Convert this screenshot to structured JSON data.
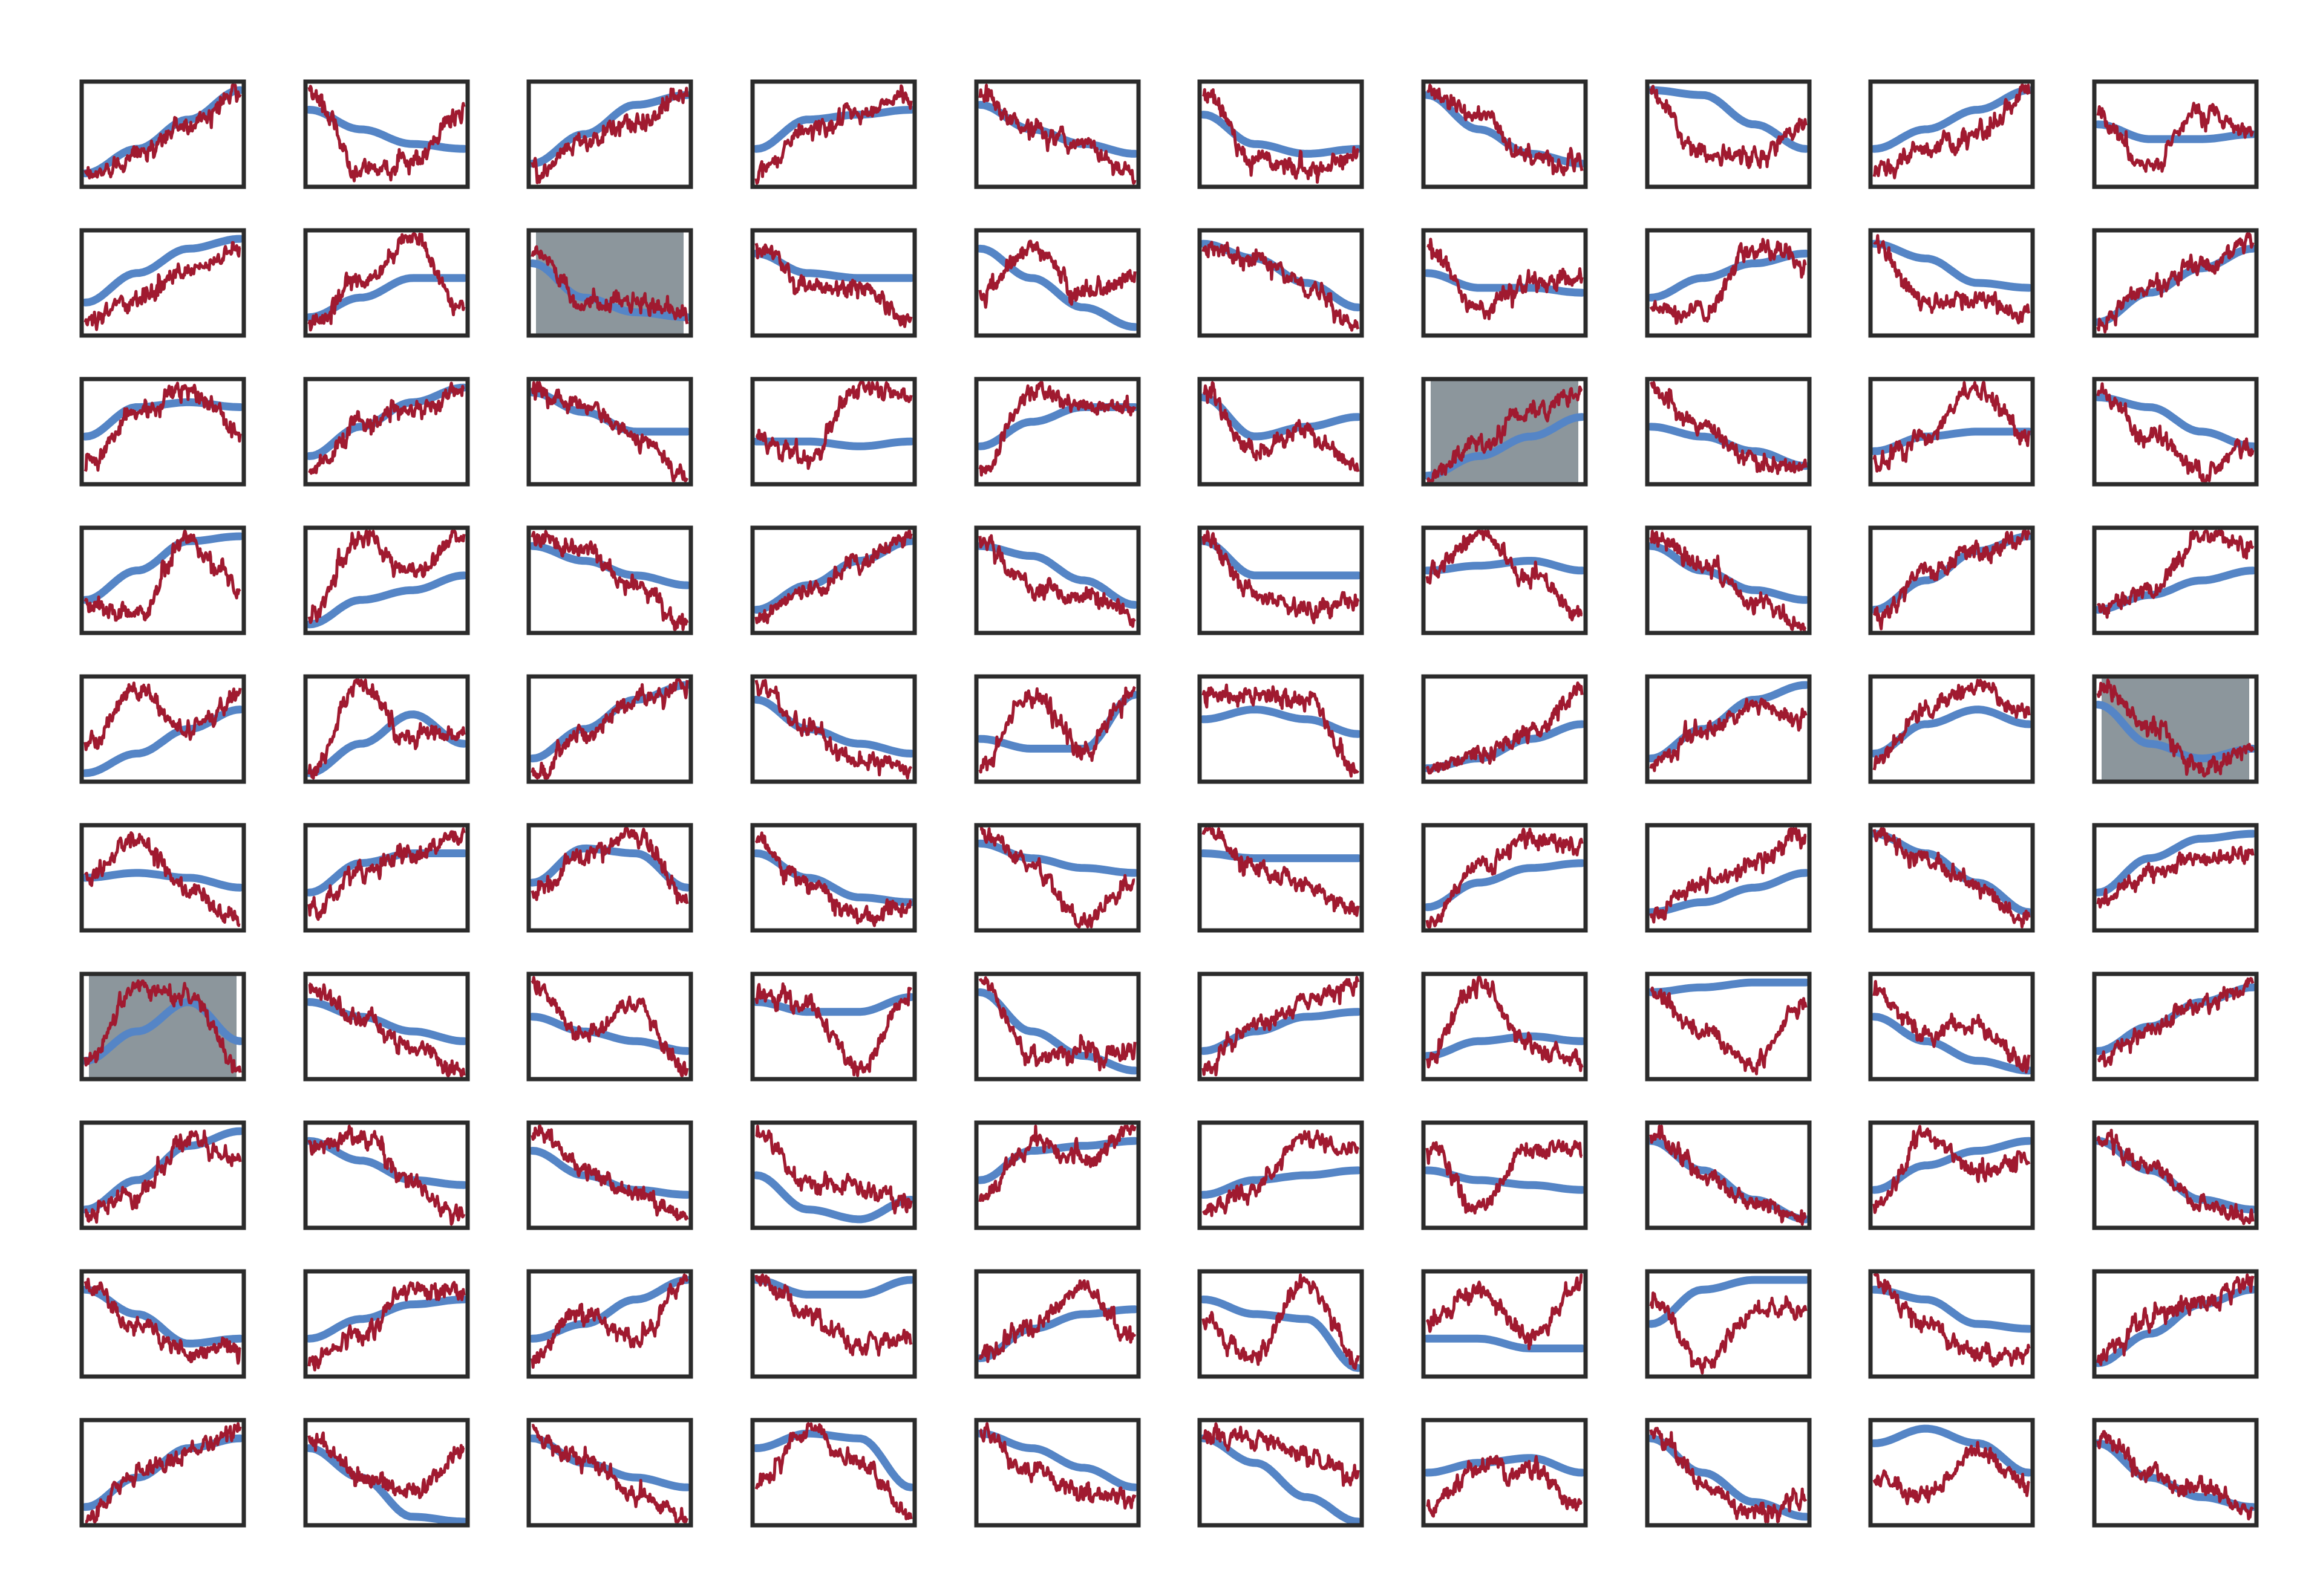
{
  "figure": {
    "rows": 10,
    "cols": 10,
    "background": "#ffffff",
    "frame_color": "#2b2b2b",
    "highlight_fill": "#8c969c",
    "smooth_color": "#5585c6",
    "noisy_color": "#a01a30"
  },
  "chart_data": {
    "type": "line",
    "description_of_layout": "",
    "grid": false,
    "legend": "none",
    "panels": []
  }
}
